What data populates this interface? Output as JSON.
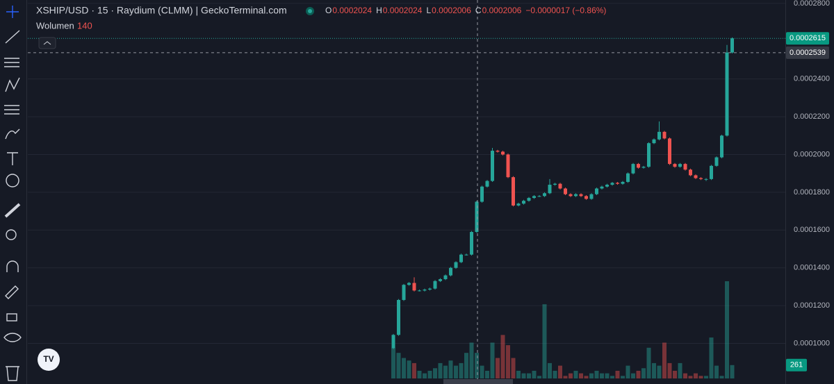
{
  "chart_data": {
    "type": "candlestick",
    "title": "XSHIP/USD · 15 · Raydium (CLMM) | GeckoTerminal.com",
    "ohlc_header": [
      {
        "key": "O",
        "value": "0.0002024"
      },
      {
        "key": "H",
        "value": "0.0002024"
      },
      {
        "key": "L",
        "value": "0.0002006"
      },
      {
        "key": "C",
        "value": "0.0002006"
      }
    ],
    "change": "−0.0000017 (−0.86%)",
    "volume_label": "Wolumen",
    "volume_value": 140,
    "up_color": "#26a69a",
    "down_color": "#ef5350",
    "open": [
      9.75e-05,
      0.0001045,
      0.000123,
      0.000131,
      0.000132,
      0.000128,
      0.000128,
      0.0001285,
      0.000129,
      0.000133,
      0.000134,
      0.000136,
      0.00014,
      0.000143,
      0.000147,
      0.000147,
      0.000159,
      0.000175,
      0.000183,
      0.000186,
      0.000202,
      0.0002015,
      0.0002,
      0.000188,
      0.000173,
      0.000174,
      0.0001755,
      0.000177,
      0.000178,
      0.000178,
      0.0001795,
      0.000184,
      0.0001845,
      0.000182,
      0.000179,
      0.000178,
      0.000179,
      0.000178,
      0.0001765,
      0.000179,
      0.000182,
      0.000183,
      0.000184,
      0.000185,
      0.0001845,
      0.0001855,
      0.00019,
      0.000195,
      0.000193,
      0.0001935,
      0.000206,
      0.000208,
      0.000212,
      0.0002085,
      0.000195,
      0.0001935,
      0.000195,
      0.000192,
      0.000189,
      0.0001875,
      0.000187,
      0.000187,
      0.000194,
      0.0001985,
      0.00021,
      0.000254
    ],
    "high": [
      0.000105,
      0.0001235,
      0.0001315,
      0.0001325,
      0.000135,
      0.0001285,
      0.000129,
      0.0001295,
      0.0001335,
      0.0001345,
      0.0001365,
      0.0001405,
      0.0001435,
      0.0001475,
      0.0001475,
      0.0001595,
      0.0001755,
      0.0001835,
      0.0001865,
      0.0002035,
      0.0002025,
      0.000202,
      0.0002005,
      0.0001885,
      0.0001745,
      0.000176,
      0.0001775,
      0.0001785,
      0.0001785,
      0.00018,
      0.000187,
      0.000185,
      0.000185,
      0.0001825,
      0.0001795,
      0.0001795,
      0.0001795,
      0.0001785,
      0.0001795,
      0.0001825,
      0.0001835,
      0.0001845,
      0.0001855,
      0.0001855,
      0.000186,
      0.0001905,
      0.0001955,
      0.0001955,
      0.000194,
      0.0002065,
      0.0002085,
      0.0002175,
      0.0002125,
      0.000209,
      0.0001955,
      0.0001955,
      0.0001955,
      0.0001925,
      0.0001895,
      0.000188,
      0.0001875,
      0.0001945,
      0.000199,
      0.0002105,
      0.000258,
      0.000262
    ],
    "low": [
      9.7e-05,
      0.000104,
      0.0001225,
      0.0001305,
      0.0001275,
      0.0001275,
      0.0001275,
      0.000128,
      0.0001285,
      0.0001325,
      0.0001335,
      0.0001355,
      0.0001395,
      0.0001425,
      0.0001465,
      0.0001465,
      0.0001585,
      0.0001745,
      0.0001825,
      0.0001855,
      0.000201,
      0.0001995,
      0.0001875,
      0.0001725,
      0.0001725,
      0.0001735,
      0.000175,
      0.0001765,
      0.0001775,
      0.0001775,
      0.000179,
      0.0001835,
      0.0001815,
      0.0001785,
      0.0001775,
      0.0001775,
      0.0001775,
      0.000176,
      0.000176,
      0.0001785,
      0.0001815,
      0.0001825,
      0.0001835,
      0.000184,
      0.000184,
      0.000185,
      0.0001895,
      0.0001925,
      0.0001925,
      0.000193,
      0.0002055,
      0.0002075,
      0.000208,
      0.0001945,
      0.000193,
      0.000193,
      0.0001915,
      0.0001885,
      0.000187,
      0.0001865,
      0.000186,
      0.0001865,
      0.0001935,
      0.000198,
      0.0002095,
      0.0002535
    ],
    "close": [
      0.0001045,
      0.000123,
      0.000131,
      0.000132,
      0.000128,
      0.000128,
      0.0001285,
      0.000129,
      0.000133,
      0.000134,
      0.000136,
      0.00014,
      0.000143,
      0.000147,
      0.000147,
      0.000159,
      0.000175,
      0.000183,
      0.000186,
      0.000202,
      0.0002015,
      0.0002,
      0.000188,
      0.000173,
      0.000174,
      0.0001755,
      0.000177,
      0.000178,
      0.000178,
      0.0001795,
      0.000184,
      0.0001845,
      0.000182,
      0.000179,
      0.000178,
      0.000179,
      0.000178,
      0.0001765,
      0.000179,
      0.000182,
      0.000183,
      0.000184,
      0.000185,
      0.0001845,
      0.0001855,
      0.00019,
      0.000195,
      0.000193,
      0.0001935,
      0.000206,
      0.000208,
      0.000212,
      0.0002085,
      0.000195,
      0.0001935,
      0.000195,
      0.000192,
      0.000189,
      0.0001875,
      0.000187,
      0.000187,
      0.000194,
      0.0001985,
      0.00021,
      0.000254,
      0.0002615
    ],
    "volume": [
      600,
      500,
      400,
      350,
      300,
      150,
      100,
      150,
      200,
      300,
      250,
      350,
      250,
      300,
      500,
      700,
      500,
      250,
      150,
      700,
      400,
      850,
      650,
      400,
      150,
      100,
      100,
      150,
      50,
      1450,
      300,
      150,
      250,
      50,
      100,
      150,
      100,
      50,
      100,
      150,
      100,
      100,
      50,
      150,
      50,
      250,
      100,
      150,
      200,
      600,
      300,
      250,
      700,
      300,
      150,
      300,
      100,
      50,
      100,
      50,
      50,
      800,
      250,
      50,
      1900,
      261
    ],
    "ylim": [
      7.85e-05,
      0.0002818
    ],
    "yticks": [
      {
        "value": 0.00028,
        "label": "0.0002800"
      },
      {
        "value": 0.00024,
        "label": "0.0002400"
      },
      {
        "value": 0.00022,
        "label": "0.0002200"
      },
      {
        "value": 0.0002,
        "label": "0.0002000"
      },
      {
        "value": 0.00018,
        "label": "0.0001800"
      },
      {
        "value": 0.00016,
        "label": "0.0001600"
      },
      {
        "value": 0.00014,
        "label": "0.0001400"
      },
      {
        "value": 0.00012,
        "label": "0.0001200"
      },
      {
        "value": 0.0001,
        "label": "0.0001000"
      }
    ],
    "last_price": {
      "value": 0.0002615,
      "label": "0.0002615"
    },
    "crosshair_price": {
      "value": 0.0002539,
      "label": "0.0002539"
    },
    "grid": true
  }
}
